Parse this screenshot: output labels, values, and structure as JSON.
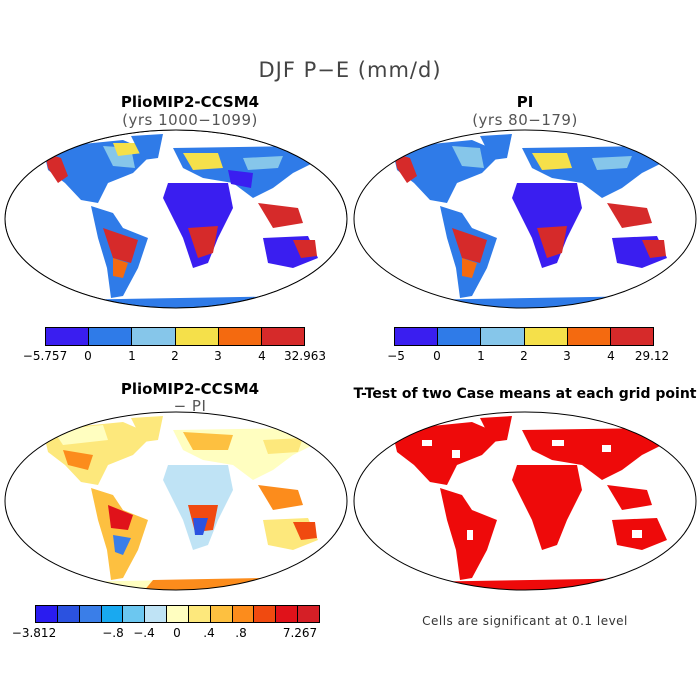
{
  "main_title": "DJF P−E (mm/d)",
  "panels": {
    "top_left": {
      "title": "PlioMIP2-CCSM4",
      "subtitle": "(yrs 1000−1099)"
    },
    "top_right": {
      "title": "PI",
      "subtitle": "(yrs 80−179)"
    },
    "bottom_left": {
      "title": "PlioMIP2-CCSM4",
      "subtitle": "− PI"
    },
    "bottom_right": {
      "title": "T-Test of two Case means at each grid point",
      "note": "Cells are significant at 0.1 level"
    }
  },
  "colorbars": {
    "top_left": {
      "colors": [
        "#3a1ef0",
        "#2f7be8",
        "#86c6ea",
        "#f5e04a",
        "#f46a10",
        "#d62a2a"
      ],
      "ticks": [
        "−5.757",
        "0",
        "1",
        "2",
        "3",
        "4",
        "32.963"
      ]
    },
    "top_right": {
      "colors": [
        "#3a1ef0",
        "#2f7be8",
        "#86c6ea",
        "#f5e04a",
        "#f46a10",
        "#d62a2a"
      ],
      "ticks": [
        "−5",
        "0",
        "1",
        "2",
        "3",
        "4",
        "29.12"
      ]
    },
    "bottom_left": {
      "colors": [
        "#2a1cf0",
        "#2b52e0",
        "#3a7ee8",
        "#19a9f0",
        "#6cc7f0",
        "#bfe3f5",
        "#fffec0",
        "#fde87c",
        "#fdc040",
        "#fc8c1c",
        "#f04a10",
        "#e0121a",
        "#d51f26"
      ],
      "ticks": [
        "−3.812",
        "−.8",
        "−.4",
        "0",
        ".4",
        ".8",
        "7.267"
      ]
    }
  },
  "map_colors": {
    "ocean": "#ffffff",
    "significant": "#ee0a0a"
  }
}
